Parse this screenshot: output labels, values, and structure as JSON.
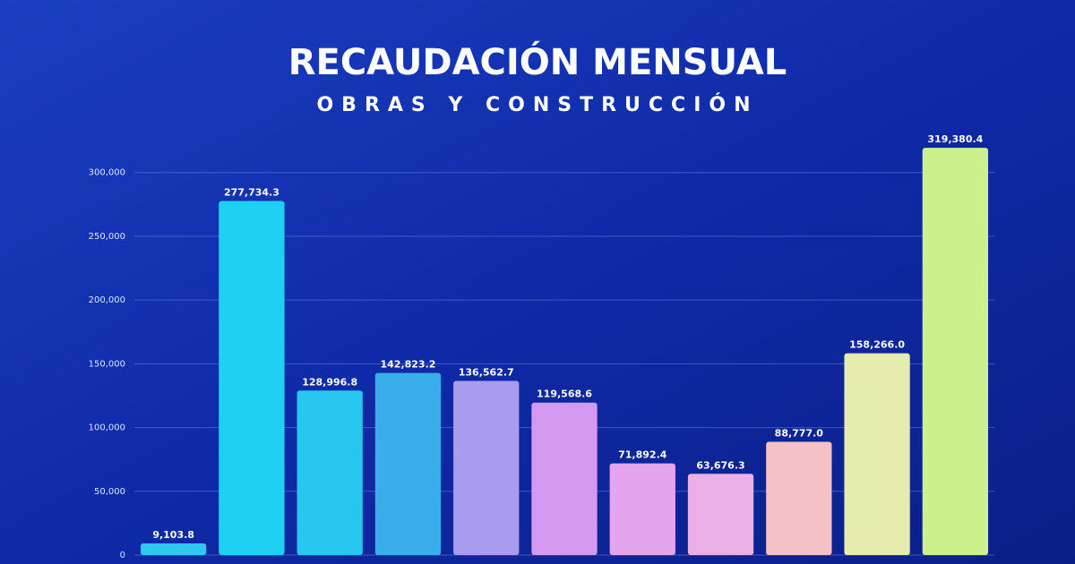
{
  "chart_data": {
    "type": "bar",
    "title": "RECAUDACIÓN MENSUAL",
    "subtitle": "OBRAS Y CONSTRUCCIÓN",
    "categories": [
      null,
      null,
      null,
      null,
      null,
      null,
      null,
      null,
      null,
      null,
      null
    ],
    "values": [
      9103.8,
      277734.3,
      128996.8,
      142823.2,
      136562.7,
      119568.6,
      71892.4,
      63676.3,
      88777.0,
      158266.0,
      319380.4
    ],
    "value_labels": [
      "9,103.8",
      "277,734.3",
      "128,996.8",
      "142,823.2",
      "136,562.7",
      "119,568.6",
      "71,892.4",
      "63,676.3",
      "88,777.0",
      "158,266.0",
      "319,380.4"
    ],
    "colors": [
      "#2ec8f0",
      "#1fd0f2",
      "#27c6ee",
      "#3aaeea",
      "#a99cf0",
      "#d49af2",
      "#e4a4ee",
      "#eab0e6",
      "#f2c2c6",
      "#e6ecae",
      "#cdf08e"
    ],
    "ylim": [
      0,
      330000
    ],
    "yticks": [
      0,
      {
        "value": 50000,
        "label": "50,000"
      },
      {
        "value": 100000,
        "label": "100,000"
      },
      {
        "value": 150000,
        "label": "150,000"
      },
      {
        "value": 200000,
        "label": "200,000"
      },
      {
        "value": 250000,
        "label": "250,000"
      },
      {
        "value": 300000,
        "label": "300,000"
      }
    ],
    "grid": true
  }
}
